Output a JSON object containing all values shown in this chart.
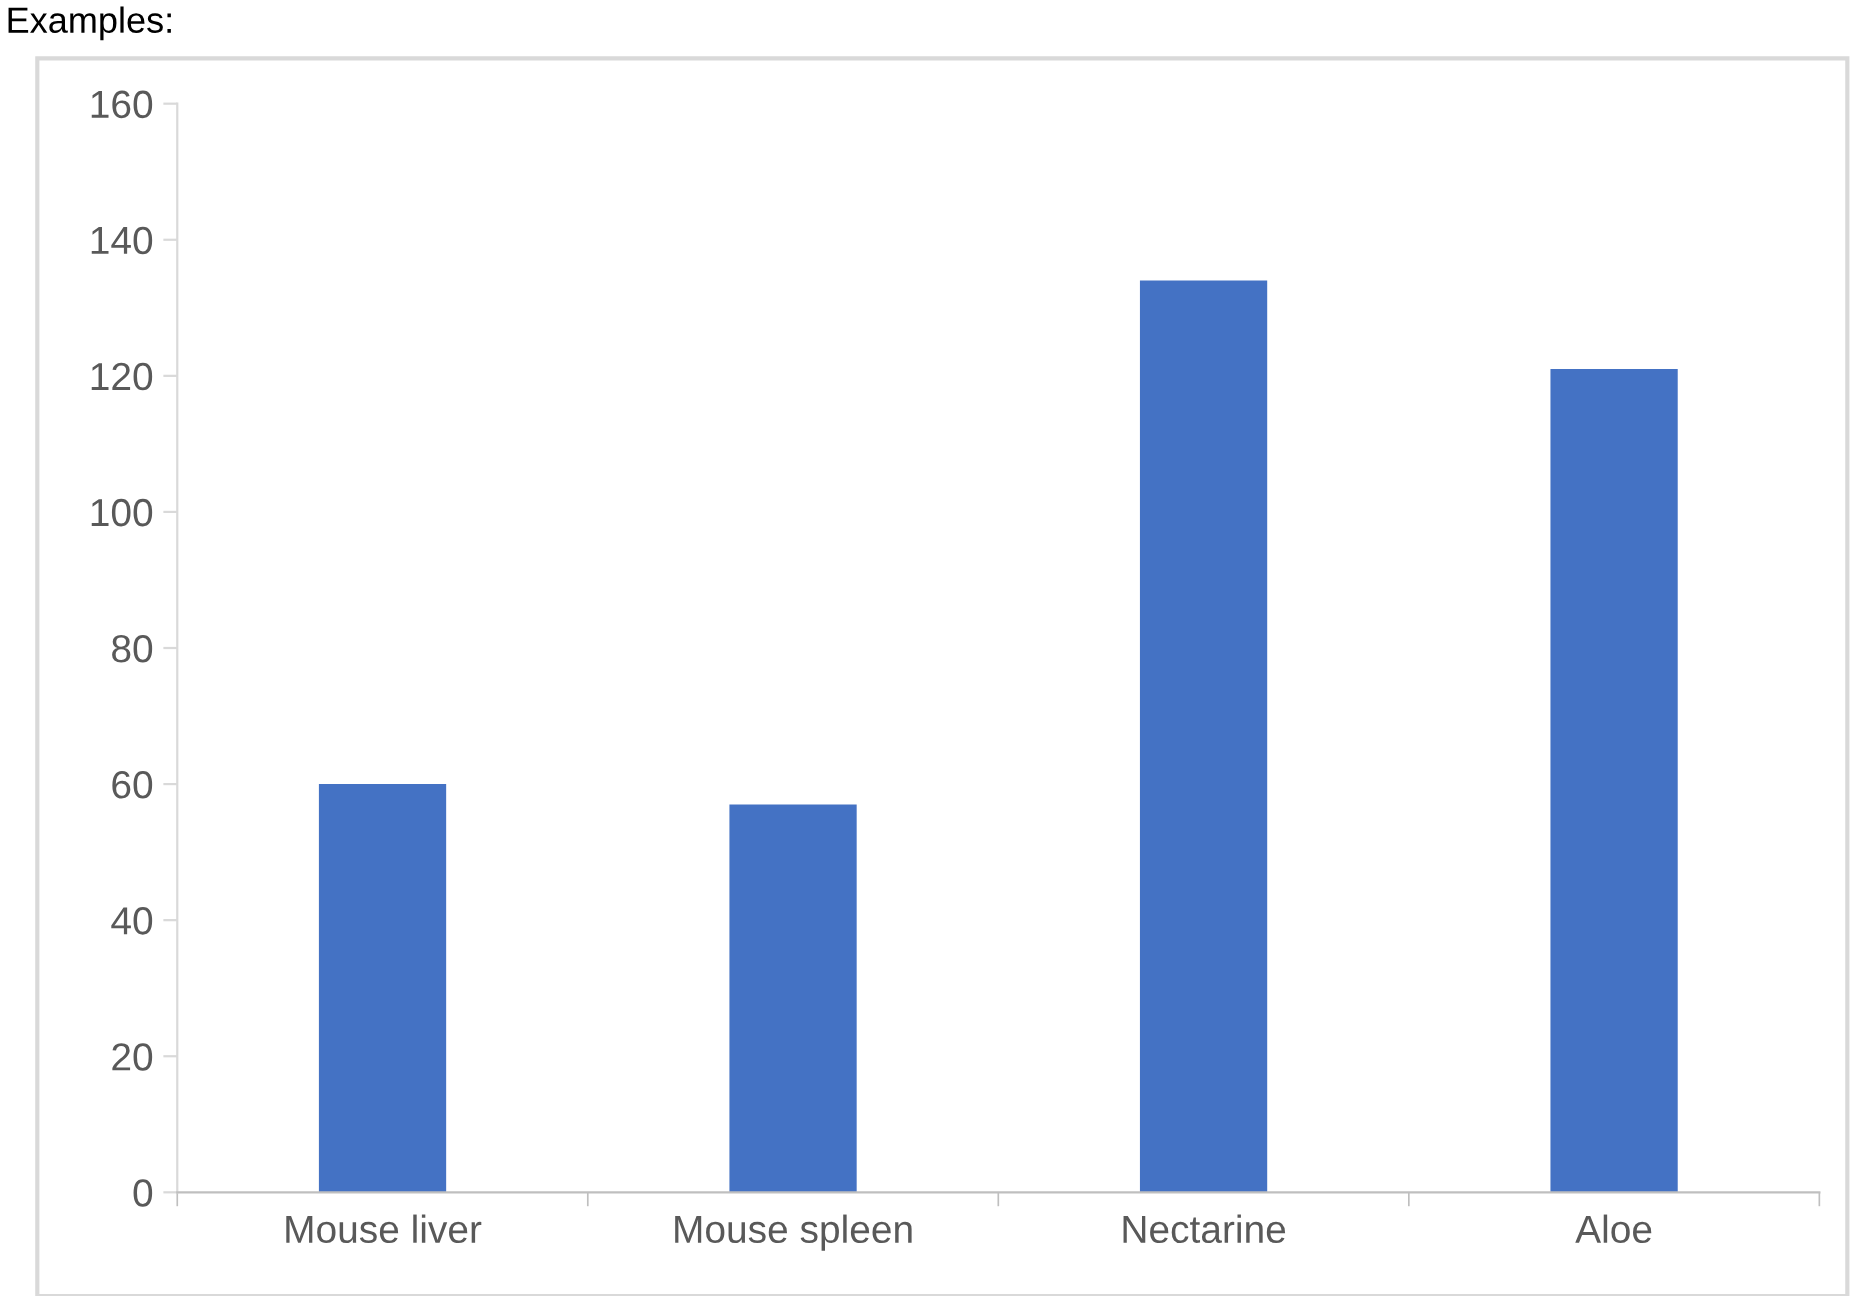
{
  "chart_data": {
    "type": "bar",
    "title": "Examples:",
    "categories": [
      "Mouse liver",
      "Mouse spleen",
      "Nectarine",
      "Aloe"
    ],
    "values": [
      60,
      57,
      134,
      121
    ],
    "color": "#4472c4",
    "ylim": [
      0,
      160
    ],
    "yticks": [
      0,
      20,
      40,
      60,
      80,
      100,
      120,
      140,
      160
    ],
    "grid": false
  }
}
